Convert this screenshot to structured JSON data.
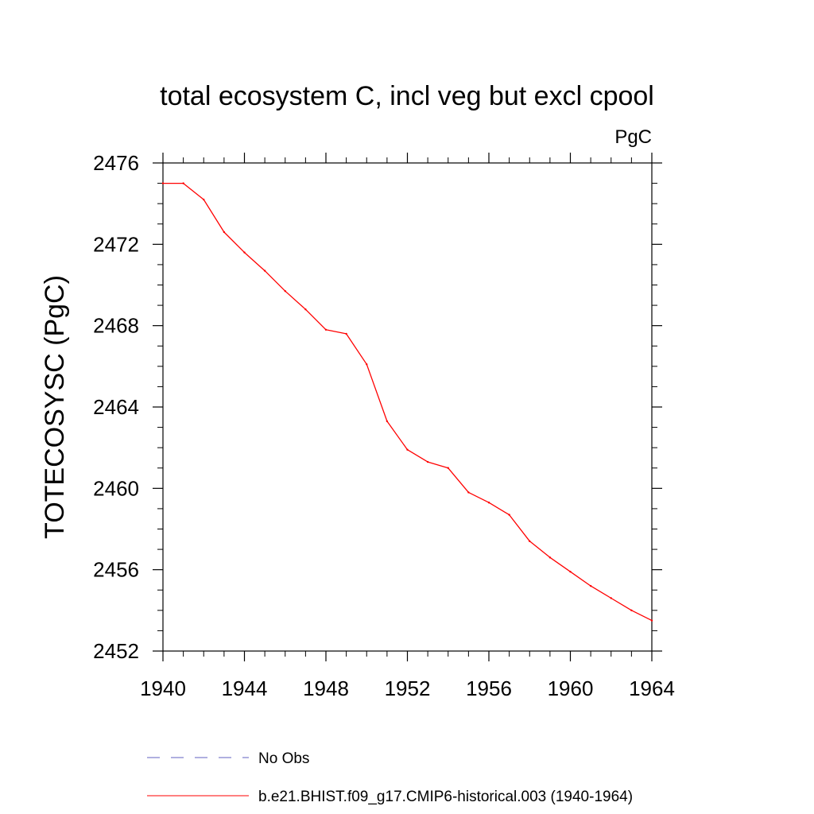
{
  "chart_data": {
    "type": "line",
    "title": "total ecosystem C, incl veg but excl cpool",
    "units": "PgC",
    "ylabel": "TOTECOSYSC  (PgC)",
    "xlabel": "",
    "xlim": [
      1940,
      1964
    ],
    "ylim": [
      2452,
      2476
    ],
    "xticks": [
      1940,
      1944,
      1948,
      1952,
      1956,
      1960,
      1964
    ],
    "yticks": [
      2452,
      2456,
      2460,
      2464,
      2468,
      2472,
      2476
    ],
    "grid": false,
    "series": [
      {
        "name": "b.e21.BHIST.f09_g17.CMIP6-historical.003 (1940-1964)",
        "color": "#ff0000",
        "style": "solid",
        "x": [
          1940,
          1941,
          1942,
          1943,
          1944,
          1945,
          1946,
          1947,
          1948,
          1949,
          1950,
          1951,
          1952,
          1953,
          1954,
          1955,
          1956,
          1957,
          1958,
          1959,
          1960,
          1961,
          1962,
          1963,
          1964
        ],
        "y": [
          2475.0,
          2475.0,
          2474.2,
          2472.6,
          2471.6,
          2470.7,
          2469.7,
          2468.8,
          2467.8,
          2467.6,
          2466.1,
          2463.3,
          2461.9,
          2461.3,
          2461.0,
          2459.8,
          2459.3,
          2458.7,
          2457.4,
          2456.6,
          2455.9,
          2455.2,
          2454.6,
          2454.0,
          2453.5
        ]
      }
    ],
    "legend": {
      "placement": "bottom",
      "entries": [
        {
          "label": "No Obs",
          "color": "#6060c0",
          "style": "dashed"
        },
        {
          "label": "b.e21.BHIST.f09_g17.CMIP6-historical.003 (1940-1964)",
          "color": "#ff0000",
          "style": "solid"
        }
      ]
    }
  }
}
